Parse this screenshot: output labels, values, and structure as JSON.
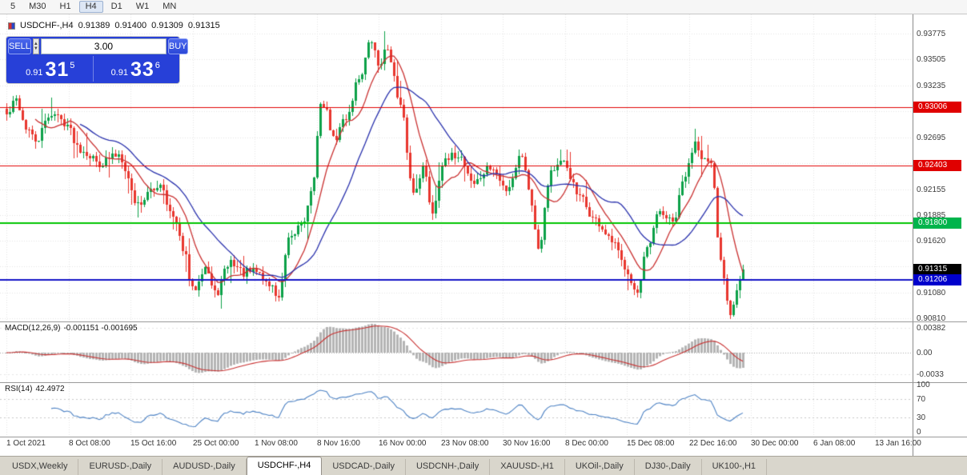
{
  "toolbar": {
    "timeframes": [
      "5",
      "M30",
      "H1",
      "H4",
      "D1",
      "W1",
      "MN"
    ],
    "active": "H4"
  },
  "trade_panel": {
    "sell_label": "SELL",
    "buy_label": "BUY",
    "volume": "3.00",
    "spin_up": "▲",
    "spin_down": "▼",
    "sell": {
      "prefix": "0.91",
      "big": "31",
      "sup": "5"
    },
    "buy": {
      "prefix": "0.91",
      "big": "33",
      "sup": "6"
    }
  },
  "macd": {
    "title": "MACD(12,26,9)",
    "values": "-0.001151 -0.001695",
    "axis": [
      "0.00382",
      "0.00",
      "-0.0033"
    ]
  },
  "rsi": {
    "title": "RSI(14)",
    "value": "42.4972",
    "axis": [
      "100",
      "70",
      "30",
      "0"
    ],
    "levels": [
      70,
      30
    ]
  },
  "tabs": {
    "items": [
      "USDX,Weekly",
      "EURUSD-,Daily",
      "AUDUSD-,Daily",
      "USDCHF-,H4",
      "USDCAD-,Daily",
      "USDCNH-,Daily",
      "XAUUSD-,H1",
      "UKOil-,Daily",
      "DJ30-,Daily",
      "UK100-,H1"
    ],
    "active_index": 3
  },
  "chart_data": {
    "type": "candlestick",
    "symbol_period": "USDCHF-,H4",
    "ohlc": {
      "open": "0.91389",
      "high": "0.91400",
      "low": "0.91309",
      "close": "0.91315"
    },
    "price_axis": {
      "min": 0.9081,
      "max": 0.93775,
      "ticks": [
        "0.93775",
        "0.93505",
        "0.93235",
        "0.92695",
        "0.92155",
        "0.91885",
        "0.91620",
        "0.91080",
        "0.90810"
      ]
    },
    "grid_prices": [
      0.93775,
      0.93505,
      0.93235,
      0.92965,
      0.92695,
      0.92425,
      0.92155,
      0.91885,
      0.9162,
      0.9135,
      0.9108,
      0.9081
    ],
    "price_tags": [
      {
        "text": "0.93006",
        "price": 0.93006,
        "color": "#E00000"
      },
      {
        "text": "0.92403",
        "price": 0.92403,
        "color": "#E00000"
      },
      {
        "text": "0.91800",
        "price": 0.918,
        "color": "#00B44C"
      },
      {
        "text": "0.91315",
        "price": 0.91315,
        "color": "#000000"
      },
      {
        "text": "0.91206",
        "price": 0.91206,
        "color": "#0000CC"
      }
    ],
    "hlines": [
      {
        "price": 0.93006,
        "color": "#E00000",
        "width": 1
      },
      {
        "price": 0.92403,
        "color": "#E00000",
        "width": 1
      },
      {
        "price": 0.918,
        "color": "#00C400",
        "width": 2
      },
      {
        "price": 0.91206,
        "color": "#1515C8",
        "width": 2
      }
    ],
    "time_labels": [
      "1 Oct 2021",
      "8 Oct 08:00",
      "15 Oct 16:00",
      "25 Oct 00:00",
      "1 Nov 08:00",
      "8 Nov 16:00",
      "16 Nov 00:00",
      "23 Nov 08:00",
      "30 Nov 16:00",
      "8 Dec 00:00",
      "15 Dec 08:00",
      "22 Dec 16:00",
      "30 Dec 00:00",
      "6 Jan 08:00",
      "13 Jan 16:00"
    ],
    "time_label_x": [
      8,
      86,
      163,
      241,
      318,
      396,
      473,
      551,
      628,
      706,
      783,
      861,
      938,
      1016,
      1093
    ],
    "bars": 231,
    "last_close": 0.91315,
    "anchors": [
      [
        0,
        0.9292
      ],
      [
        3,
        0.9308
      ],
      [
        6,
        0.928
      ],
      [
        9,
        0.9265
      ],
      [
        14,
        0.9295
      ],
      [
        18,
        0.9286
      ],
      [
        23,
        0.9258
      ],
      [
        29,
        0.9243
      ],
      [
        35,
        0.9252
      ],
      [
        41,
        0.92
      ],
      [
        45,
        0.9212
      ],
      [
        48,
        0.9222
      ],
      [
        52,
        0.9185
      ],
      [
        55,
        0.9155
      ],
      [
        58,
        0.911
      ],
      [
        62,
        0.9136
      ],
      [
        65,
        0.9106
      ],
      [
        70,
        0.914
      ],
      [
        74,
        0.9128
      ],
      [
        78,
        0.913
      ],
      [
        82,
        0.9116
      ],
      [
        85,
        0.9103
      ],
      [
        88,
        0.916
      ],
      [
        93,
        0.9186
      ],
      [
        96,
        0.9225
      ],
      [
        98,
        0.9308
      ],
      [
        100,
        0.9295
      ],
      [
        102,
        0.9266
      ],
      [
        106,
        0.929
      ],
      [
        110,
        0.9332
      ],
      [
        114,
        0.937
      ],
      [
        116,
        0.9345
      ],
      [
        119,
        0.9362
      ],
      [
        123,
        0.93
      ],
      [
        127,
        0.9212
      ],
      [
        130,
        0.9238
      ],
      [
        133,
        0.9192
      ],
      [
        136,
        0.9242
      ],
      [
        141,
        0.9252
      ],
      [
        146,
        0.9222
      ],
      [
        151,
        0.9238
      ],
      [
        156,
        0.9216
      ],
      [
        161,
        0.9252
      ],
      [
        164,
        0.92
      ],
      [
        166,
        0.9155
      ],
      [
        170,
        0.9235
      ],
      [
        174,
        0.9242
      ],
      [
        179,
        0.9206
      ],
      [
        184,
        0.9182
      ],
      [
        189,
        0.916
      ],
      [
        193,
        0.9136
      ],
      [
        197,
        0.9106
      ],
      [
        200,
        0.9152
      ],
      [
        204,
        0.9192
      ],
      [
        208,
        0.918
      ],
      [
        212,
        0.923
      ],
      [
        215,
        0.9266
      ],
      [
        218,
        0.9246
      ],
      [
        220,
        0.9238
      ],
      [
        223,
        0.914
      ],
      [
        226,
        0.9088
      ],
      [
        228,
        0.9112
      ],
      [
        230,
        0.91315
      ]
    ],
    "ma": [
      {
        "period": 10,
        "color": "#C93030"
      },
      {
        "period": 24,
        "color": "#2830AC"
      }
    ],
    "colors": {
      "up": "#0CA148",
      "down": "#E8362E",
      "grid": "#E4E4E4",
      "macd_hist": "#B4B4B4",
      "macd_signal": "#C83232",
      "rsi_line": "#4D82C4"
    }
  }
}
